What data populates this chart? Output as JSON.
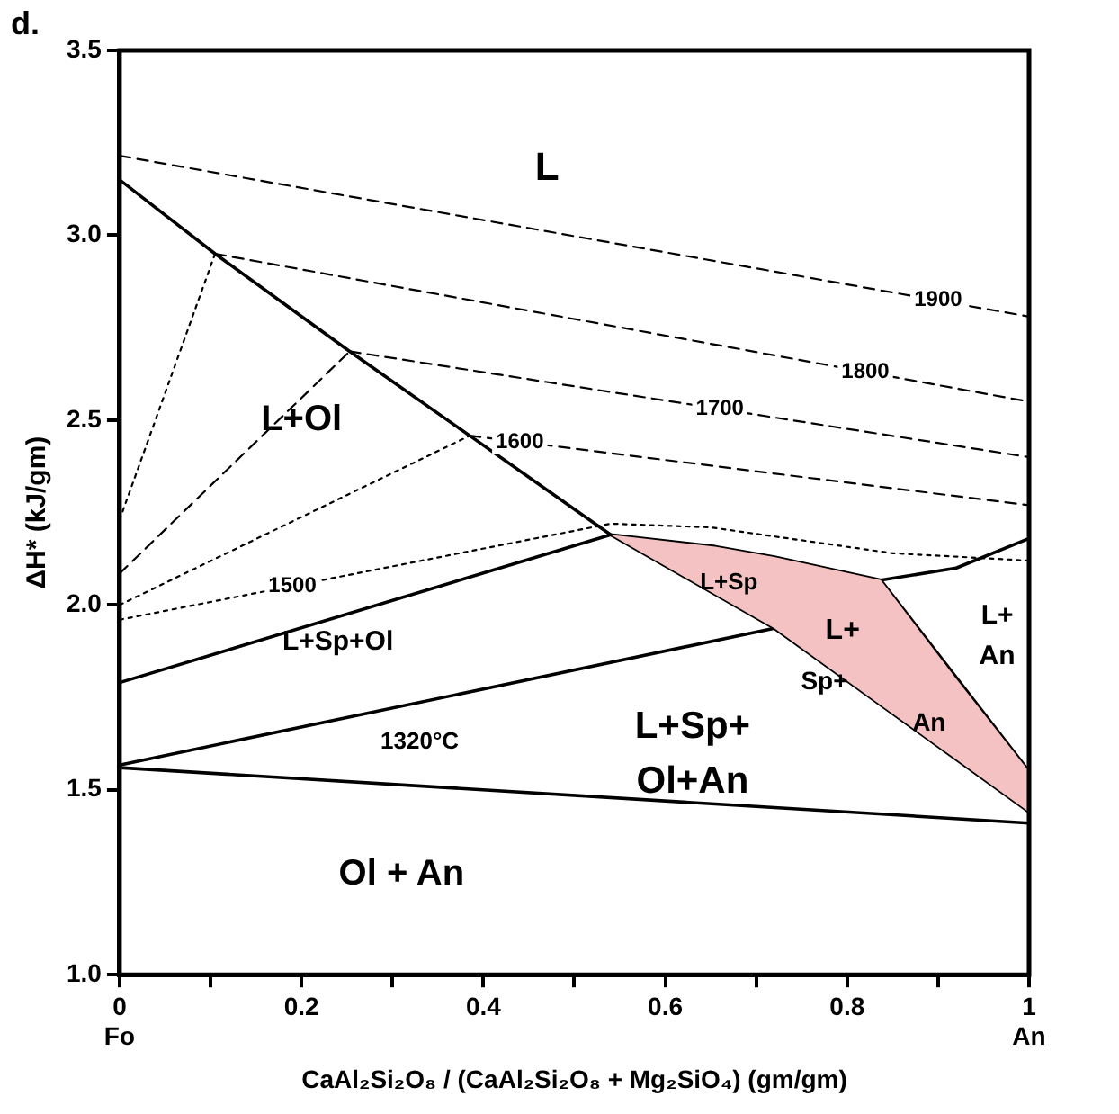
{
  "chart_data": {
    "type": "line",
    "xlabel": "CaAl₂Si₂O₈ / (CaAl₂Si₂O₈ + Mg₂SiO₄) (gm/gm)",
    "ylabel": "ΔH* (kJ/gm)",
    "xlim": [
      0,
      1
    ],
    "ylim": [
      1,
      3.5
    ],
    "xticks": [
      {
        "value": 0,
        "label": "0\nFo"
      },
      {
        "value": 0.1,
        "label": null
      },
      0.2,
      {
        "value": 0.3,
        "label": null
      },
      0.4,
      {
        "value": 0.5,
        "label": null
      },
      0.6,
      {
        "value": 0.7,
        "label": null
      },
      0.8,
      {
        "value": 0.9,
        "label": null
      },
      {
        "value": 1,
        "label": "1\nAn"
      }
    ],
    "yticks": [
      {
        "value": 1,
        "label": "1.0"
      },
      1.5,
      {
        "value": 2,
        "label": "2.0"
      },
      2.5,
      {
        "value": 3,
        "label": "3.0"
      },
      3.5
    ],
    "grid": false,
    "legend": false,
    "marker": "none",
    "series": [
      {
        "type": "area",
        "color": "#f4c2c2",
        "x": [
          0.54,
          0.655,
          0.72,
          0.837,
          0.92,
          1,
          1,
          0.92,
          0.837,
          0.72,
          0.655
        ],
        "values": [
          2.19,
          2.158,
          2.13,
          2.067,
          1.8,
          1.55,
          1.44,
          1.582,
          1.729,
          1.937,
          2.028
        ]
      },
      {
        "type": "line",
        "color": "#000000",
        "line_style": "solid",
        "x": [
          0,
          0.105,
          0.253,
          0.385,
          0.54,
          0.655,
          0.72,
          0.837,
          0.92,
          1
        ],
        "values": [
          3.15,
          2.95,
          2.686,
          2.458,
          2.19,
          2.158,
          2.13,
          2.067,
          2.1,
          2.18
        ]
      },
      {
        "type": "line",
        "color": "#000000",
        "line_style": "solid",
        "x": [
          0,
          0.54,
          0.72,
          1
        ],
        "values": [
          1.79,
          2.19,
          1.937,
          1.44
        ]
      },
      {
        "type": "line",
        "color": "#000000",
        "line_style": "solid",
        "x": [
          0,
          0.72,
          0.837,
          1
        ],
        "values": [
          1.567,
          1.937,
          2.067,
          1.55
        ]
      },
      {
        "type": "line",
        "color": "#000000",
        "line_style": "solid",
        "x": [
          0,
          1
        ],
        "values": [
          1.56,
          1.41
        ]
      },
      {
        "type": "line",
        "color": "#000000",
        "line_style": "dashed",
        "x": [
          0,
          1
        ],
        "values": [
          3.215,
          2.78
        ]
      },
      {
        "type": "line",
        "color": "#000000",
        "line_style": "dashed",
        "x": [
          0.105,
          1
        ],
        "values": [
          2.95,
          2.55
        ]
      },
      {
        "type": "line",
        "color": "#000000",
        "line_style": "dashed",
        "x": [
          0.253,
          1
        ],
        "values": [
          2.686,
          2.4
        ]
      },
      {
        "type": "line",
        "color": "#000000",
        "line_style": "dashed",
        "x": [
          0.385,
          1
        ],
        "values": [
          2.458,
          2.27
        ]
      },
      {
        "type": "line",
        "color": "#000000",
        "line_style": "dotted",
        "x": [
          0,
          0.54,
          0.65,
          0.85,
          1
        ],
        "values": [
          1.96,
          2.22,
          2.21,
          2.14,
          2.12
        ]
      },
      {
        "type": "line",
        "color": "#000000",
        "line_style": "dotted",
        "x": [
          0,
          0.105
        ],
        "values": [
          2.23,
          2.95
        ]
      },
      {
        "type": "line",
        "color": "#000000",
        "line_style": "dashed",
        "x": [
          0,
          0.253
        ],
        "values": [
          2.085,
          2.686
        ]
      },
      {
        "type": "line",
        "color": "#000000",
        "line_style": "dotted",
        "x": [
          0,
          0.385
        ],
        "values": [
          2.0,
          2.458
        ]
      }
    ],
    "annotations": [
      "d.",
      "L",
      "L+Ol",
      "L+Sp+Ol",
      "L+Sp+",
      "Ol+An",
      "L+Sp",
      "L+",
      "Sp+",
      "An",
      "L+",
      "An",
      "1320°C",
      "Ol + An",
      {
        "text": "1900",
        "x": 0.9,
        "y": 2.824
      },
      {
        "text": "1800",
        "x": 0.82,
        "y": 2.63
      },
      {
        "text": "1700",
        "x": 0.66,
        "y": 2.53
      },
      {
        "text": "1600",
        "x": 0.44,
        "y": 2.441
      },
      {
        "text": "1500",
        "x": 0.19,
        "y": 2.051
      }
    ]
  }
}
